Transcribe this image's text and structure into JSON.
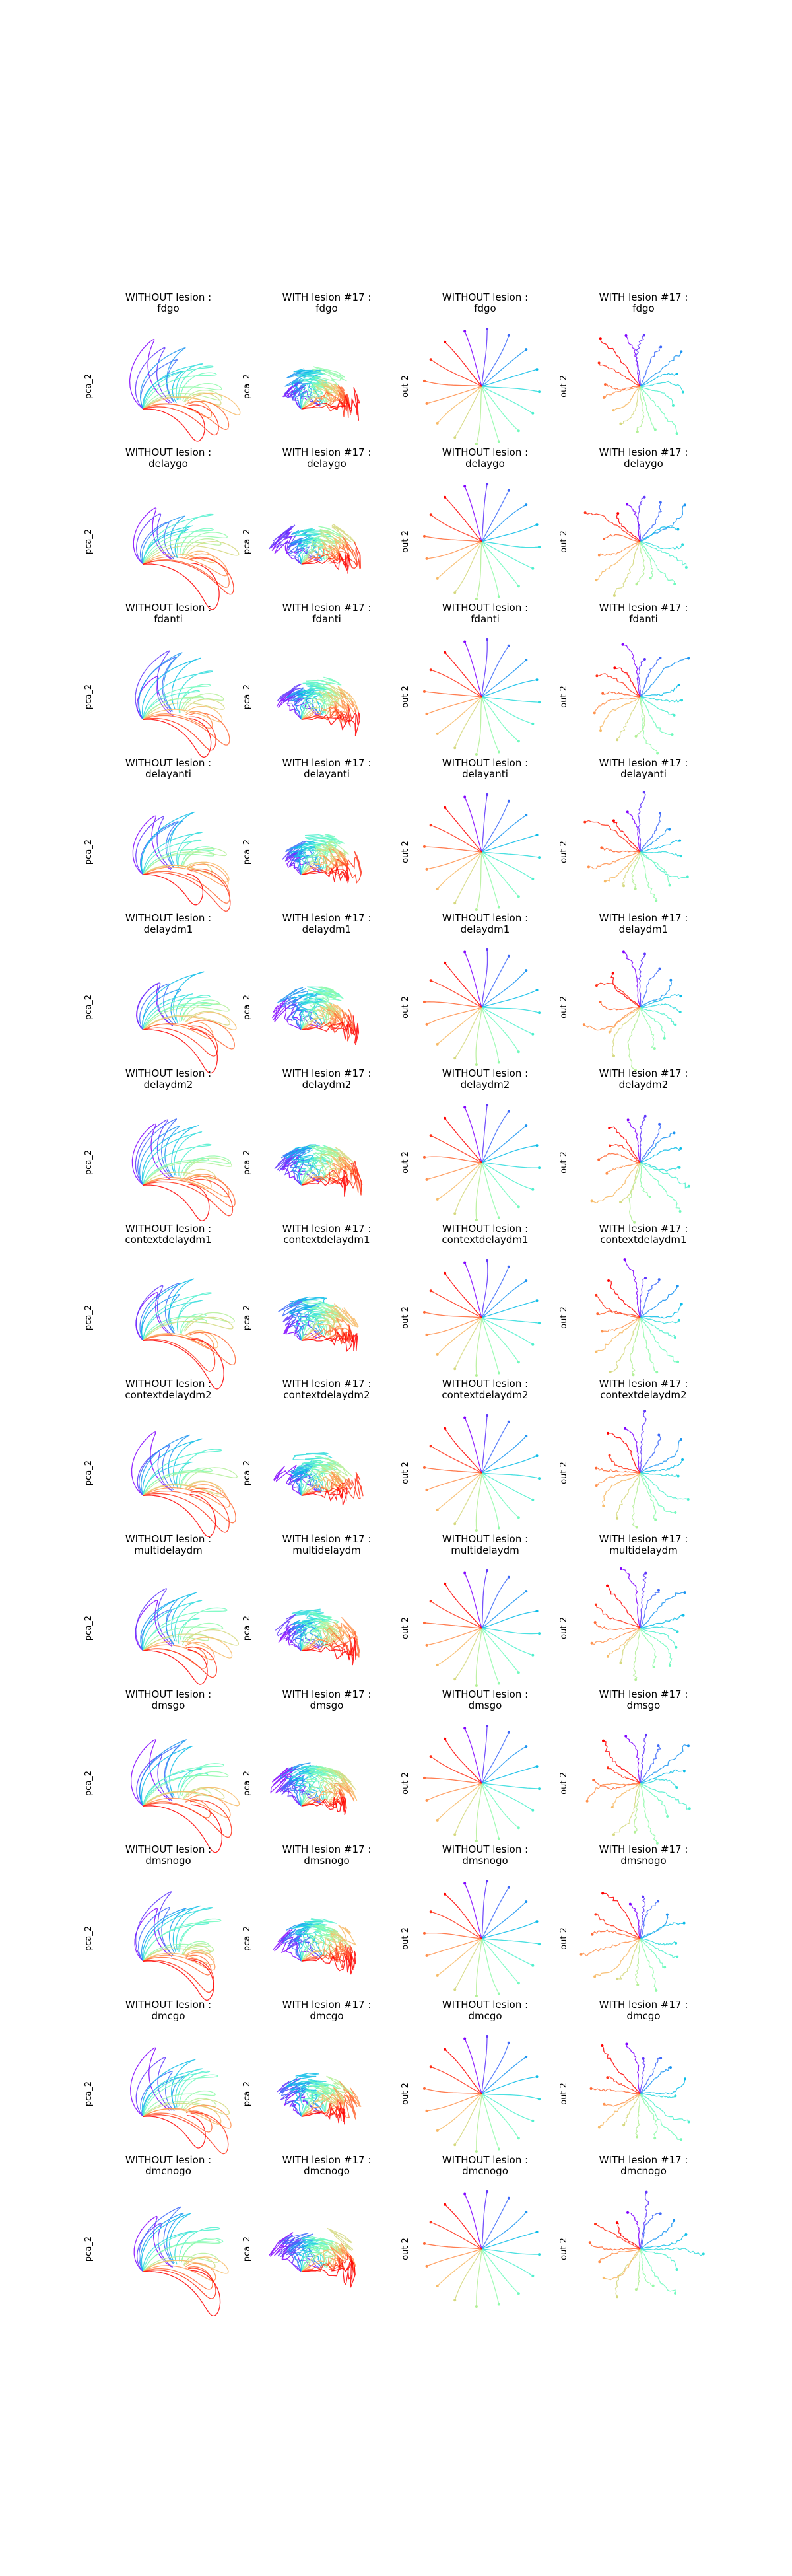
{
  "chart_data": {
    "type": "line",
    "layout": "grid",
    "rows": 13,
    "cols": 4,
    "description": "Grid of trajectory line plots per task; each panel shows a fan of colored trajectories (rainbow colormap by stimulus angle). Columns: PCA of network state without lesion, PCA with lesion #17, output without lesion, output with lesion #17.",
    "tasks": [
      "fdgo",
      "delaygo",
      "fdanti",
      "delayanti",
      "delaydm1",
      "delaydm2",
      "contextdelaydm1",
      "contextdelaydm2",
      "multidelaydm",
      "dmsgo",
      "dmsnogo",
      "dmcgo",
      "dmcnogo"
    ],
    "column_titles": [
      "WITHOUT lesion :",
      "WITH lesion #17 :",
      "WITHOUT lesion :",
      "WITH lesion #17 :"
    ],
    "ylabels": [
      "pca_2",
      "pca_2",
      "out 2",
      "out 2"
    ],
    "n_trajectories_per_panel": 16,
    "colormap": [
      "#8000ff",
      "#4062fa",
      "#00b5eb",
      "#40ecd4",
      "#80ffb4",
      "#c0eb8d",
      "#ffb360",
      "#ff6030",
      "#ff0000"
    ],
    "grid": false,
    "axes_visible": false
  }
}
